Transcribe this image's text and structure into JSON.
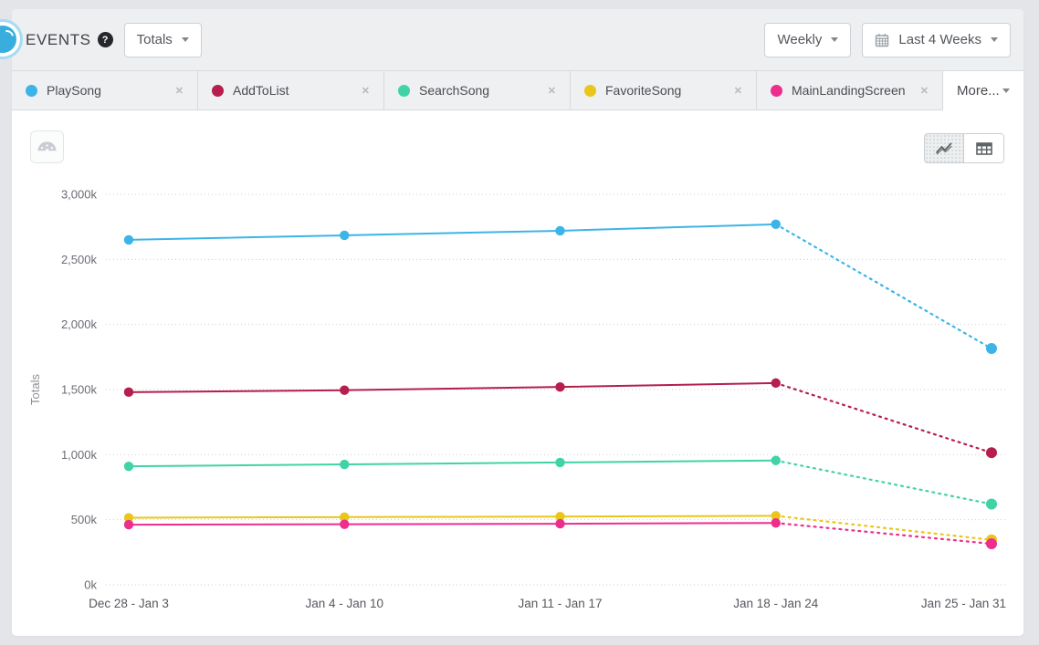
{
  "header": {
    "title": "EVENTS",
    "metric_dropdown": {
      "value": "Totals"
    },
    "interval_dropdown": {
      "value": "Weekly"
    },
    "daterange_dropdown": {
      "value": "Last 4 Weeks"
    }
  },
  "icons": {
    "help": "?",
    "close": "✕"
  },
  "tabs": {
    "events": [
      {
        "label": "PlaySong",
        "color": "#3cb4e7"
      },
      {
        "label": "AddToList",
        "color": "#b51e4d"
      },
      {
        "label": "SearchSong",
        "color": "#41d3a6"
      },
      {
        "label": "FavoriteSong",
        "color": "#eac61c"
      },
      {
        "label": "MainLandingScreen",
        "color": "#ed2e8d"
      }
    ],
    "more_label": "More..."
  },
  "view_toggle": {
    "active_view": "line"
  },
  "chart_data": {
    "type": "line",
    "title": "",
    "ylabel": "Totals",
    "unit": "k (thousands)",
    "categories": [
      "Dec 28 - Jan 3",
      "Jan 4 - Jan 10",
      "Jan 11 - Jan 17",
      "Jan 18 - Jan 24",
      "Jan 25 - Jan 31"
    ],
    "series": [
      {
        "name": "PlaySong",
        "color": "#3cb4e7",
        "values": [
          2650,
          2685,
          2720,
          2770,
          1815
        ]
      },
      {
        "name": "AddToList",
        "color": "#b51e4d",
        "values": [
          1480,
          1495,
          1520,
          1550,
          1015
        ]
      },
      {
        "name": "SearchSong",
        "color": "#41d3a6",
        "values": [
          910,
          925,
          940,
          955,
          620
        ]
      },
      {
        "name": "FavoriteSong",
        "color": "#eac61c",
        "values": [
          515,
          520,
          524,
          530,
          345
        ]
      },
      {
        "name": "MainLandingScreen",
        "color": "#ed2e8d",
        "values": [
          462,
          465,
          469,
          475,
          315
        ]
      }
    ],
    "ylim": [
      0,
      3000
    ],
    "ytick_step": 500,
    "ytick_labels": [
      "0k",
      "500k",
      "1,000k",
      "1,500k",
      "2,000k",
      "2,500k",
      "3,000k"
    ],
    "grid": "horizontal-dotted",
    "legend_position": "tabs",
    "last_segment_style": "dotted"
  }
}
